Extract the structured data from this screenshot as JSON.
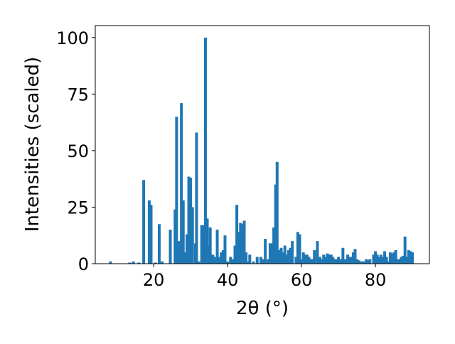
{
  "chart_data": {
    "type": "bar",
    "xlabel": "2θ (°)",
    "ylabel": "Intensities (scaled)",
    "color": "#1f77b4",
    "x": [
      8.3,
      13.5,
      14.5,
      16,
      17.3,
      18.8,
      19.3,
      20.5,
      21.5,
      22.3,
      24.5,
      25.8,
      26.2,
      26.8,
      27.5,
      28.0,
      28.5,
      29.0,
      29.5,
      30.0,
      30.5,
      31.3,
      31.6,
      32.2,
      33.0,
      33.5,
      34.0,
      34.5,
      35.0,
      35.3,
      36.0,
      36.5,
      37.2,
      37.8,
      38.3,
      38.8,
      39.3,
      40.0,
      40.8,
      41.5,
      42.0,
      42.5,
      43.0,
      43.5,
      44.0,
      44.5,
      45.0,
      45.5,
      46.0,
      47.0,
      48.0,
      49.0,
      49.5,
      50.2,
      51.0,
      51.5,
      52.0,
      52.5,
      53.0,
      53.4,
      54.0,
      54.5,
      55.0,
      55.5,
      56.0,
      56.5,
      57.0,
      57.5,
      58.5,
      59.0,
      59.5,
      60.0,
      60.5,
      61.0,
      61.5,
      62.0,
      62.5,
      63.0,
      63.5,
      64.3,
      65.0,
      65.5,
      66.0,
      66.5,
      67.0,
      67.5,
      68.0,
      68.5,
      69.0,
      69.5,
      70.0,
      70.5,
      71.2,
      71.8,
      72.5,
      73.0,
      73.5,
      74.0,
      74.5,
      75.0,
      75.5,
      76.0,
      76.5,
      77.0,
      77.5,
      78.0,
      78.5,
      79.5,
      80.0,
      80.5,
      81.0,
      81.5,
      82.0,
      82.5,
      83.0,
      83.5,
      84.0,
      84.5,
      85.0,
      85.5,
      86.0,
      86.5,
      87.0,
      87.5,
      88.0,
      88.5,
      89.0,
      89.5,
      90.0
    ],
    "values": [
      1,
      0.5,
      1,
      0.5,
      37,
      28,
      26,
      0.5,
      17.5,
      1,
      15,
      24,
      65,
      10,
      71,
      28,
      5,
      13,
      38.5,
      38,
      25,
      9,
      58,
      1,
      17,
      17,
      100,
      20,
      8,
      16,
      4,
      3,
      15,
      3,
      5,
      6,
      12.5,
      1,
      3,
      2,
      8,
      26,
      14,
      18,
      17.5,
      19,
      5,
      1,
      4,
      1,
      3,
      3,
      2,
      11,
      2,
      9,
      9,
      16,
      35,
      45,
      6,
      7,
      5,
      8,
      4,
      6,
      7,
      10,
      3,
      14,
      13,
      2,
      5,
      4,
      4,
      3,
      2,
      2,
      6,
      10,
      3,
      2,
      4,
      3,
      4.5,
      4,
      4,
      3,
      2,
      2,
      3,
      2,
      7,
      2,
      4,
      3,
      3,
      5,
      6.5,
      2,
      1.5,
      1,
      1,
      1,
      2,
      1.5,
      2,
      4,
      5.5,
      4,
      3,
      4,
      3,
      5.5,
      3,
      1,
      5,
      4.5,
      5,
      6,
      2,
      2,
      3,
      3.5,
      12,
      3,
      6,
      5.5,
      5
    ],
    "xlim": [
      4.2,
      94.6
    ],
    "ylim": [
      0,
      105.3
    ],
    "xticks": [
      20,
      40,
      60,
      80
    ],
    "yticks": [
      0,
      25,
      50,
      75,
      100
    ]
  }
}
